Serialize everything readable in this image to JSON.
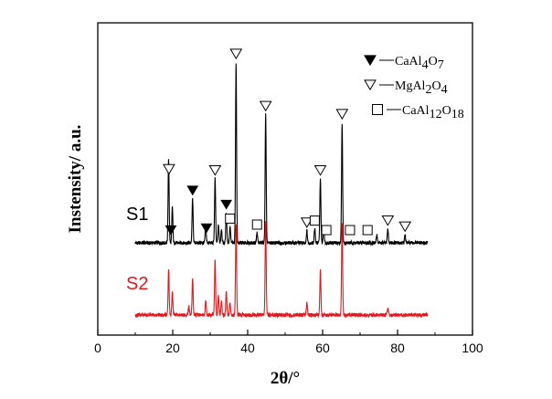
{
  "chart_data": {
    "type": "line",
    "xlabel": "2θ/°",
    "ylabel": "Instensity/ a.u.",
    "xlim": [
      0,
      100
    ],
    "xticks": [
      "0",
      "20",
      "40",
      "60",
      "80",
      "100"
    ],
    "y_ticks_shown": false,
    "grid": false,
    "legend": {
      "placement": "top-right",
      "entries": [
        {
          "marker": "filled-triangle-down",
          "prefix": "CaAl",
          "sub1": "4",
          "mid": "O",
          "sub2": "7"
        },
        {
          "marker": "open-triangle-down",
          "prefix": "MgAl",
          "sub1": "2",
          "mid": "O",
          "sub2": "4"
        },
        {
          "marker": "open-square",
          "prefix": "CaAl",
          "sub1": "12",
          "mid": "O",
          "sub2": "18"
        }
      ]
    },
    "x_range_measured": [
      10,
      88
    ],
    "series": [
      {
        "name": "S1",
        "color": "#000000",
        "label_color": "#000000",
        "baseline": 0.27,
        "peaks": [
          [
            18.9,
            2.1
          ],
          [
            19.9,
            0.9
          ],
          [
            25.3,
            1.1
          ],
          [
            28.8,
            0.45
          ],
          [
            31.3,
            1.6
          ],
          [
            32.2,
            0.45
          ],
          [
            33.0,
            0.35
          ],
          [
            34.3,
            0.75
          ],
          [
            35.3,
            0.4
          ],
          [
            36.9,
            4.5
          ],
          [
            42.5,
            0.25
          ],
          [
            44.8,
            3.2
          ],
          [
            55.8,
            0.3
          ],
          [
            57.9,
            0.35
          ],
          [
            59.4,
            1.6
          ],
          [
            60.3,
            0.45
          ],
          [
            65.2,
            3.0
          ],
          [
            74.5,
            0.2
          ],
          [
            77.4,
            0.35
          ],
          [
            82.0,
            0.2
          ]
        ]
      },
      {
        "name": "S2",
        "color": "#e8161b",
        "label_color": "#e8161b",
        "baseline": 0.0,
        "peaks": [
          [
            18.9,
            1.15
          ],
          [
            19.9,
            0.55
          ],
          [
            24.3,
            0.25
          ],
          [
            25.3,
            0.9
          ],
          [
            28.8,
            0.35
          ],
          [
            31.3,
            1.35
          ],
          [
            32.2,
            0.5
          ],
          [
            33.0,
            0.35
          ],
          [
            34.3,
            0.6
          ],
          [
            35.3,
            0.3
          ],
          [
            36.9,
            2.3
          ],
          [
            44.8,
            2.3
          ],
          [
            55.8,
            0.3
          ],
          [
            59.4,
            1.1
          ],
          [
            65.2,
            2.3
          ],
          [
            77.4,
            0.2
          ]
        ]
      }
    ],
    "markers": [
      {
        "type": "filled-triangle-down",
        "x": 19.5,
        "series": "S1"
      },
      {
        "type": "filled-triangle-down",
        "x": 25.3,
        "series": "S1"
      },
      {
        "type": "filled-triangle-down",
        "x": 29.0,
        "series": "S1"
      },
      {
        "type": "filled-triangle-down",
        "x": 34.3,
        "series": "S1"
      },
      {
        "type": "open-triangle-down",
        "x": 19.0,
        "series": "S1"
      },
      {
        "type": "open-triangle-down",
        "x": 31.3,
        "series": "S1"
      },
      {
        "type": "open-triangle-down",
        "x": 36.9,
        "series": "S1"
      },
      {
        "type": "open-triangle-down",
        "x": 44.8,
        "series": "S1"
      },
      {
        "type": "open-triangle-down",
        "x": 55.8,
        "series": "S1"
      },
      {
        "type": "open-triangle-down",
        "x": 59.4,
        "series": "S1"
      },
      {
        "type": "open-triangle-down",
        "x": 65.2,
        "series": "S1"
      },
      {
        "type": "open-triangle-down",
        "x": 77.4,
        "series": "S1"
      },
      {
        "type": "open-triangle-down",
        "x": 82.0,
        "series": "S1"
      },
      {
        "type": "open-square",
        "x": 35.3,
        "series": "S1"
      },
      {
        "type": "open-square",
        "x": 42.5,
        "series": "S1"
      },
      {
        "type": "open-square",
        "x": 57.9,
        "series": "S1"
      },
      {
        "type": "open-square",
        "x": 61.0,
        "series": "S1"
      },
      {
        "type": "open-square",
        "x": 67.3,
        "series": "S1"
      },
      {
        "type": "open-square",
        "x": 72.0,
        "series": "S1"
      }
    ]
  }
}
